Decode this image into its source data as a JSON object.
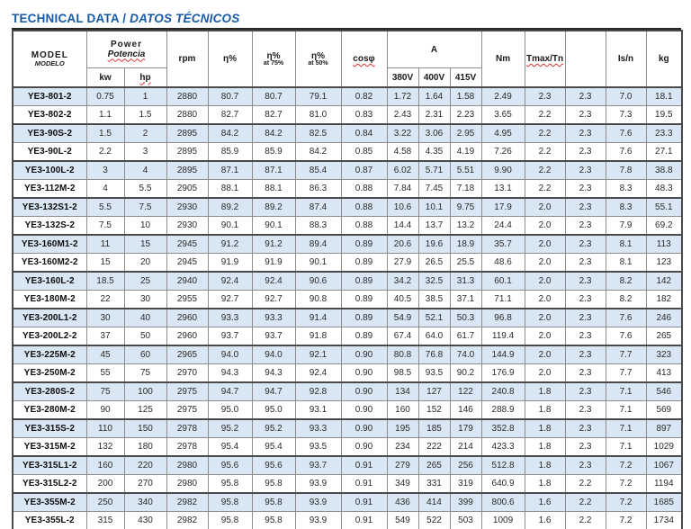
{
  "title": {
    "main": "TECHNICAL DATA / ",
    "sub": "DATOS TÉCNICOS"
  },
  "header": {
    "model": "MODEL",
    "modelo": "MODELO",
    "power": "Power",
    "potencia": "Potencia",
    "kw": "kw",
    "hp": "hp",
    "rpm": "rpm",
    "eta": "η%",
    "eta75_top": "η%",
    "eta75_sub": "at 75%",
    "eta50_top": "η%",
    "eta50_sub": "at 50%",
    "cosphi": "cosφ",
    "amps": "A",
    "v380": "380V",
    "v400": "400V",
    "v415": "415V",
    "nm": "Nm",
    "tmax": "Tmax/Tn",
    "unlabeled": "",
    "isn": "Is/n",
    "kg": "kg"
  },
  "table": {
    "column_keys": [
      "model",
      "kw",
      "hp",
      "rpm",
      "eta",
      "eta-75",
      "eta-50",
      "cos-phi",
      "a-380v",
      "a-400v",
      "a-415v",
      "nm",
      "tmax-tn",
      "unlabeled",
      "is-n",
      "kg"
    ],
    "rows": [
      [
        "YE3-801-2",
        "0.75",
        "1",
        "2880",
        "80.7",
        "80.7",
        "79.1",
        "0.82",
        "1.72",
        "1.64",
        "1.58",
        "2.49",
        "2.3",
        "2.3",
        "7.0",
        "18.1"
      ],
      [
        "YE3-802-2",
        "1.1",
        "1.5",
        "2880",
        "82.7",
        "82.7",
        "81.0",
        "0.83",
        "2.43",
        "2.31",
        "2.23",
        "3.65",
        "2.2",
        "2.3",
        "7.3",
        "19.5"
      ],
      [
        "YE3-90S-2",
        "1.5",
        "2",
        "2895",
        "84.2",
        "84.2",
        "82.5",
        "0.84",
        "3.22",
        "3.06",
        "2.95",
        "4.95",
        "2.2",
        "2.3",
        "7.6",
        "23.3"
      ],
      [
        "YE3-90L-2",
        "2.2",
        "3",
        "2895",
        "85.9",
        "85.9",
        "84.2",
        "0.85",
        "4.58",
        "4.35",
        "4.19",
        "7.26",
        "2.2",
        "2.3",
        "7.6",
        "27.1"
      ],
      [
        "YE3-100L-2",
        "3",
        "4",
        "2895",
        "87.1",
        "87.1",
        "85.4",
        "0.87",
        "6.02",
        "5.71",
        "5.51",
        "9.90",
        "2.2",
        "2.3",
        "7.8",
        "38.8"
      ],
      [
        "YE3-112M-2",
        "4",
        "5.5",
        "2905",
        "88.1",
        "88.1",
        "86.3",
        "0.88",
        "7.84",
        "7.45",
        "7.18",
        "13.1",
        "2.2",
        "2.3",
        "8.3",
        "48.3"
      ],
      [
        "YE3-132S1-2",
        "5.5",
        "7.5",
        "2930",
        "89.2",
        "89.2",
        "87.4",
        "0.88",
        "10.6",
        "10.1",
        "9.75",
        "17.9",
        "2.0",
        "2.3",
        "8.3",
        "55.1"
      ],
      [
        "YE3-132S-2",
        "7.5",
        "10",
        "2930",
        "90.1",
        "90.1",
        "88.3",
        "0.88",
        "14.4",
        "13.7",
        "13.2",
        "24.4",
        "2.0",
        "2.3",
        "7.9",
        "69.2"
      ],
      [
        "YE3-160M1-2",
        "11",
        "15",
        "2945",
        "91.2",
        "91.2",
        "89.4",
        "0.89",
        "20.6",
        "19.6",
        "18.9",
        "35.7",
        "2.0",
        "2.3",
        "8.1",
        "113"
      ],
      [
        "YE3-160M2-2",
        "15",
        "20",
        "2945",
        "91.9",
        "91.9",
        "90.1",
        "0.89",
        "27.9",
        "26.5",
        "25.5",
        "48.6",
        "2.0",
        "2.3",
        "8.1",
        "123"
      ],
      [
        "YE3-160L-2",
        "18.5",
        "25",
        "2940",
        "92.4",
        "92.4",
        "90.6",
        "0.89",
        "34.2",
        "32.5",
        "31.3",
        "60.1",
        "2.0",
        "2.3",
        "8.2",
        "142"
      ],
      [
        "YE3-180M-2",
        "22",
        "30",
        "2955",
        "92.7",
        "92.7",
        "90.8",
        "0.89",
        "40.5",
        "38.5",
        "37.1",
        "71.1",
        "2.0",
        "2.3",
        "8.2",
        "182"
      ],
      [
        "YE3-200L1-2",
        "30",
        "40",
        "2960",
        "93.3",
        "93.3",
        "91.4",
        "0.89",
        "54.9",
        "52.1",
        "50.3",
        "96.8",
        "2.0",
        "2.3",
        "7.6",
        "246"
      ],
      [
        "YE3-200L2-2",
        "37",
        "50",
        "2960",
        "93.7",
        "93.7",
        "91.8",
        "0.89",
        "67.4",
        "64.0",
        "61.7",
        "119.4",
        "2.0",
        "2.3",
        "7.6",
        "265"
      ],
      [
        "YE3-225M-2",
        "45",
        "60",
        "2965",
        "94.0",
        "94.0",
        "92.1",
        "0.90",
        "80.8",
        "76.8",
        "74.0",
        "144.9",
        "2.0",
        "2.3",
        "7.7",
        "323"
      ],
      [
        "YE3-250M-2",
        "55",
        "75",
        "2970",
        "94.3",
        "94.3",
        "92.4",
        "0.90",
        "98.5",
        "93.5",
        "90.2",
        "176.9",
        "2.0",
        "2.3",
        "7.7",
        "413"
      ],
      [
        "YE3-280S-2",
        "75",
        "100",
        "2975",
        "94.7",
        "94.7",
        "92.8",
        "0.90",
        "134",
        "127",
        "122",
        "240.8",
        "1.8",
        "2.3",
        "7.1",
        "546"
      ],
      [
        "YE3-280M-2",
        "90",
        "125",
        "2975",
        "95.0",
        "95.0",
        "93.1",
        "0.90",
        "160",
        "152",
        "146",
        "288.9",
        "1.8",
        "2.3",
        "7.1",
        "569"
      ],
      [
        "YE3-315S-2",
        "110",
        "150",
        "2978",
        "95.2",
        "95.2",
        "93.3",
        "0.90",
        "195",
        "185",
        "179",
        "352.8",
        "1.8",
        "2.3",
        "7.1",
        "897"
      ],
      [
        "YE3-315M-2",
        "132",
        "180",
        "2978",
        "95.4",
        "95.4",
        "93.5",
        "0.90",
        "234",
        "222",
        "214",
        "423.3",
        "1.8",
        "2.3",
        "7.1",
        "1029"
      ],
      [
        "YE3-315L1-2",
        "160",
        "220",
        "2980",
        "95.6",
        "95.6",
        "93.7",
        "0.91",
        "279",
        "265",
        "256",
        "512.8",
        "1.8",
        "2.3",
        "7.2",
        "1067"
      ],
      [
        "YE3-315L2-2",
        "200",
        "270",
        "2980",
        "95.8",
        "95.8",
        "93.9",
        "0.91",
        "349",
        "331",
        "319",
        "640.9",
        "1.8",
        "2.2",
        "7.2",
        "1194"
      ],
      [
        "YE3-355M-2",
        "250",
        "340",
        "2982",
        "95.8",
        "95.8",
        "93.9",
        "0.91",
        "436",
        "414",
        "399",
        "800.6",
        "1.6",
        "2.2",
        "7.2",
        "1685"
      ],
      [
        "YE3-355L-2",
        "315",
        "430",
        "2982",
        "95.8",
        "95.8",
        "93.9",
        "0.91",
        "549",
        "522",
        "503",
        "1009",
        "1.6",
        "2.2",
        "7.2",
        "1734"
      ]
    ]
  },
  "colors": {
    "title_blue": "#1659a5",
    "stripe_blue": "#d9e6f4",
    "border_gray": "#8c8c8c",
    "border_dark": "#4a4a4a",
    "squiggle_red": "#e03131"
  }
}
